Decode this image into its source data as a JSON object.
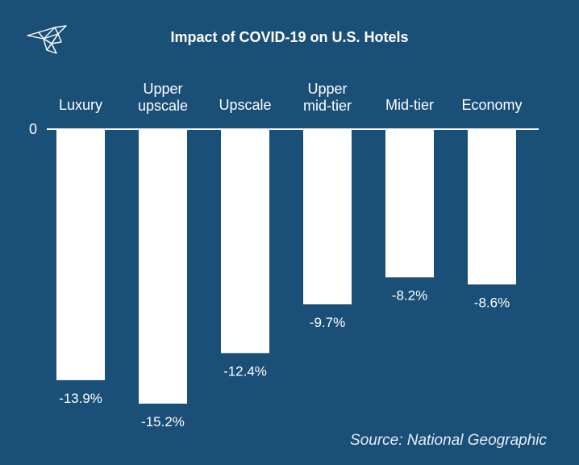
{
  "colors": {
    "background": "#1a4f78",
    "bar": "#ffffff",
    "text": "#ffffff"
  },
  "logo": {
    "icon": "bird-logo-icon"
  },
  "chart_data": {
    "type": "bar",
    "title": "Impact of COVID-19 on U.S. Hotels",
    "categories": [
      "Luxury",
      "Upper upscale",
      "Upscale",
      "Upper mid-tier",
      "Mid-tier",
      "Economy"
    ],
    "category_lines": [
      [
        "Luxury"
      ],
      [
        "Upper",
        "upscale"
      ],
      [
        "Upscale"
      ],
      [
        "Upper",
        "mid-tier"
      ],
      [
        "Mid-tier"
      ],
      [
        "Economy"
      ]
    ],
    "values": [
      -13.9,
      -15.2,
      -12.4,
      -9.7,
      -8.2,
      -8.6
    ],
    "value_labels": [
      "-13.9%",
      "-15.2%",
      "-12.4%",
      "-9.7%",
      "-8.2%",
      "-8.6%"
    ],
    "zero_label": "0",
    "ylim": [
      -15.2,
      0
    ],
    "xlabel": "",
    "ylabel": "",
    "grid": false,
    "source": "Source: National Geographic"
  }
}
